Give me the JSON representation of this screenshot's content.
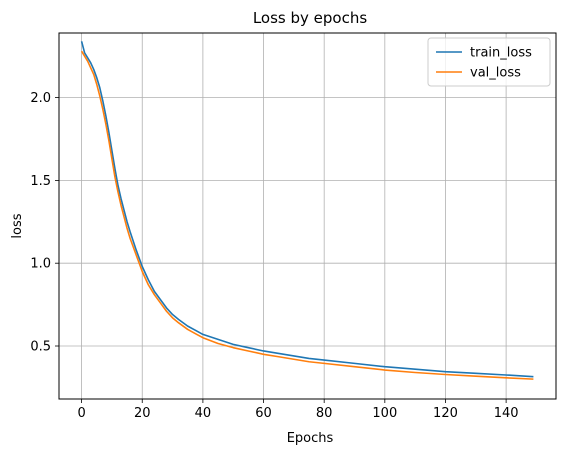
{
  "chart_data": {
    "type": "line",
    "title": "Loss by epochs",
    "xlabel": "Epochs",
    "ylabel": "loss",
    "xlim": [
      -7.45,
      156.45
    ],
    "ylim": [
      0.18,
      2.39
    ],
    "xticks": [
      0,
      20,
      40,
      60,
      80,
      100,
      120,
      140
    ],
    "yticks": [
      0.5,
      1.0,
      1.5,
      2.0
    ],
    "xtick_labels": [
      "0",
      "20",
      "40",
      "60",
      "80",
      "100",
      "120",
      "140"
    ],
    "ytick_labels": [
      "0.5",
      "1.0",
      "1.5",
      "2.0"
    ],
    "grid": true,
    "legend_position": "top-right",
    "series": [
      {
        "name": "train_loss",
        "color": "#1f77b4",
        "x": [
          0,
          1,
          2,
          3,
          4,
          5,
          6,
          7,
          8,
          9,
          10,
          11,
          12,
          13,
          14,
          15,
          16,
          18,
          20,
          22,
          24,
          26,
          28,
          30,
          32,
          35,
          38,
          40,
          45,
          50,
          55,
          60,
          65,
          70,
          75,
          80,
          90,
          100,
          110,
          120,
          130,
          140,
          149
        ],
        "y": [
          2.34,
          2.27,
          2.24,
          2.21,
          2.17,
          2.12,
          2.06,
          1.98,
          1.89,
          1.79,
          1.68,
          1.57,
          1.47,
          1.39,
          1.32,
          1.25,
          1.19,
          1.08,
          0.98,
          0.9,
          0.83,
          0.78,
          0.73,
          0.69,
          0.66,
          0.62,
          0.59,
          0.57,
          0.54,
          0.51,
          0.49,
          0.47,
          0.455,
          0.44,
          0.425,
          0.415,
          0.395,
          0.375,
          0.36,
          0.345,
          0.335,
          0.325,
          0.315
        ]
      },
      {
        "name": "val_loss",
        "color": "#ff7f0e",
        "x": [
          0,
          1,
          2,
          3,
          4,
          5,
          6,
          7,
          8,
          9,
          10,
          11,
          12,
          13,
          14,
          15,
          16,
          18,
          20,
          22,
          24,
          26,
          28,
          30,
          32,
          35,
          38,
          40,
          45,
          50,
          55,
          60,
          65,
          70,
          75,
          80,
          90,
          100,
          110,
          120,
          130,
          140,
          149
        ],
        "y": [
          2.28,
          2.25,
          2.22,
          2.18,
          2.14,
          2.08,
          2.01,
          1.93,
          1.84,
          1.74,
          1.63,
          1.52,
          1.43,
          1.35,
          1.28,
          1.21,
          1.15,
          1.05,
          0.95,
          0.87,
          0.81,
          0.76,
          0.71,
          0.67,
          0.64,
          0.6,
          0.57,
          0.55,
          0.515,
          0.49,
          0.47,
          0.45,
          0.435,
          0.42,
          0.405,
          0.395,
          0.375,
          0.355,
          0.34,
          0.328,
          0.318,
          0.308,
          0.3
        ]
      }
    ]
  }
}
